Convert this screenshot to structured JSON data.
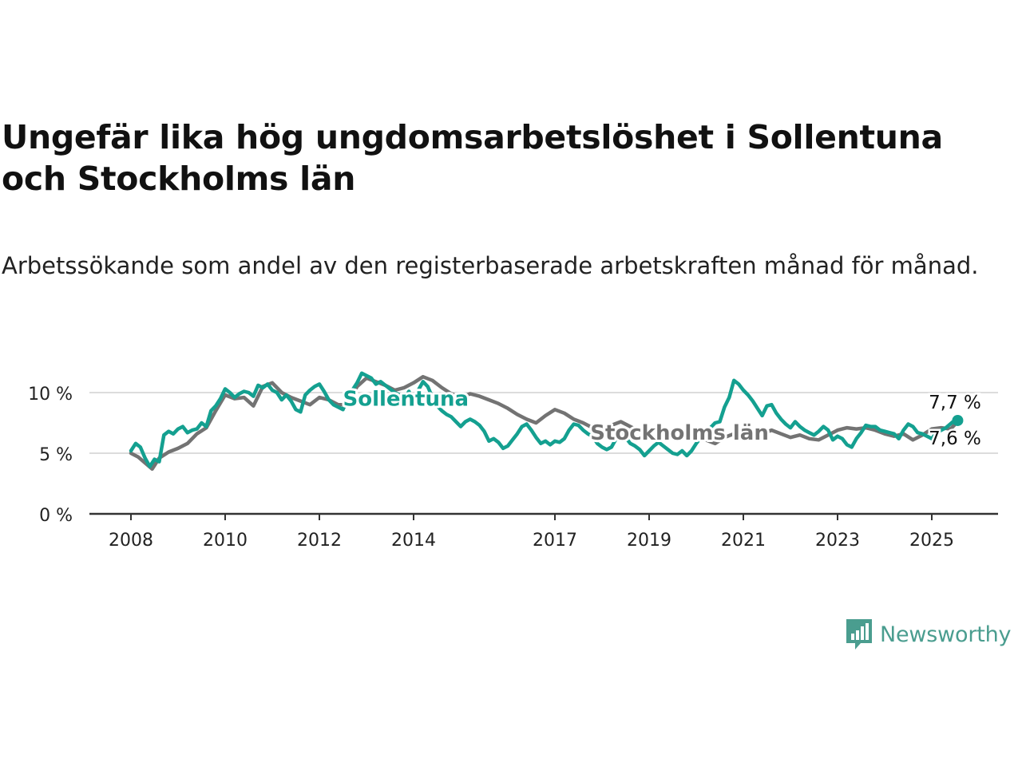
{
  "header": {
    "title": "Ungefär lika hög ungdomsarbetslöshet i Sollentuna och Stockholms län",
    "subtitle": "Arbetssökande som andel av den registerbaserade arbetskraften månad för månad."
  },
  "brand": {
    "logo_text": "Newsworthy",
    "logo_icon": "bar-chart-speech-bubble-icon",
    "color": "#4a9d8f"
  },
  "chart_data": {
    "type": "line",
    "title": "Ungefär lika hög ungdomsarbetslöshet i Sollentuna och Stockholms län",
    "subtitle": "Arbetssökande som andel av den registerbaserade arbetskraften månad för månad.",
    "xlabel": "",
    "ylabel": "",
    "xlim": [
      2008.0,
      2025.6
    ],
    "ylim": [
      0,
      12
    ],
    "x_ticks": [
      2008,
      2010,
      2012,
      2014,
      2017,
      2019,
      2021,
      2023,
      2025
    ],
    "x_tick_labels": [
      "2008",
      "2010",
      "2012",
      "2014",
      "2017",
      "2019",
      "2021",
      "2023",
      "2025"
    ],
    "y_ticks": [
      0,
      5,
      10
    ],
    "y_tick_labels": [
      "0 %",
      "5 %",
      "10 %"
    ],
    "grid": "horizontal",
    "legend": "inline labels",
    "series": [
      {
        "name": "Stockholms län",
        "color": "#737373",
        "label_x": 2017.75,
        "label_y": 6.7,
        "end_label": "7,6 %",
        "points": [
          [
            2008.0,
            5.0
          ],
          [
            2008.15,
            4.7
          ],
          [
            2008.3,
            4.2
          ],
          [
            2008.45,
            3.7
          ],
          [
            2008.6,
            4.6
          ],
          [
            2008.8,
            5.1
          ],
          [
            2009.0,
            5.4
          ],
          [
            2009.2,
            5.8
          ],
          [
            2009.4,
            6.6
          ],
          [
            2009.6,
            7.1
          ],
          [
            2009.8,
            8.5
          ],
          [
            2010.0,
            9.8
          ],
          [
            2010.2,
            9.5
          ],
          [
            2010.4,
            9.6
          ],
          [
            2010.6,
            8.9
          ],
          [
            2010.8,
            10.5
          ],
          [
            2011.0,
            10.8
          ],
          [
            2011.2,
            10.0
          ],
          [
            2011.4,
            9.6
          ],
          [
            2011.6,
            9.3
          ],
          [
            2011.8,
            9.0
          ],
          [
            2012.0,
            9.6
          ],
          [
            2012.2,
            9.4
          ],
          [
            2012.4,
            9.0
          ],
          [
            2012.6,
            9.0
          ],
          [
            2012.8,
            10.5
          ],
          [
            2013.0,
            11.2
          ],
          [
            2013.2,
            10.9
          ],
          [
            2013.4,
            10.6
          ],
          [
            2013.6,
            10.2
          ],
          [
            2013.8,
            10.4
          ],
          [
            2014.0,
            10.8
          ],
          [
            2014.2,
            11.3
          ],
          [
            2014.4,
            11.0
          ],
          [
            2014.6,
            10.4
          ],
          [
            2014.8,
            9.9
          ],
          [
            2015.0,
            9.6
          ],
          [
            2015.2,
            9.9
          ],
          [
            2015.4,
            9.7
          ],
          [
            2015.6,
            9.4
          ],
          [
            2015.8,
            9.1
          ],
          [
            2016.0,
            8.7
          ],
          [
            2016.2,
            8.2
          ],
          [
            2016.4,
            7.8
          ],
          [
            2016.6,
            7.5
          ],
          [
            2016.8,
            8.1
          ],
          [
            2017.0,
            8.6
          ],
          [
            2017.2,
            8.3
          ],
          [
            2017.4,
            7.8
          ],
          [
            2017.6,
            7.5
          ],
          [
            2017.8,
            7.1
          ],
          [
            2018.0,
            6.8
          ],
          [
            2018.2,
            7.3
          ],
          [
            2018.4,
            7.6
          ],
          [
            2018.6,
            7.2
          ],
          [
            2018.8,
            6.8
          ],
          [
            2019.0,
            6.5
          ],
          [
            2019.2,
            6.2
          ],
          [
            2019.4,
            6.6
          ],
          [
            2019.6,
            6.9
          ],
          [
            2019.8,
            6.7
          ],
          [
            2020.0,
            6.5
          ],
          [
            2020.2,
            6.1
          ],
          [
            2020.4,
            5.8
          ],
          [
            2020.6,
            6.3
          ],
          [
            2020.8,
            6.6
          ],
          [
            2021.0,
            6.7
          ],
          [
            2021.2,
            6.4
          ],
          [
            2021.4,
            6.6
          ],
          [
            2021.6,
            6.9
          ],
          [
            2021.8,
            6.6
          ],
          [
            2022.0,
            6.3
          ],
          [
            2022.2,
            6.5
          ],
          [
            2022.4,
            6.2
          ],
          [
            2022.6,
            6.1
          ],
          [
            2022.8,
            6.5
          ],
          [
            2023.0,
            6.9
          ],
          [
            2023.2,
            7.1
          ],
          [
            2023.4,
            7.0
          ],
          [
            2023.6,
            7.1
          ],
          [
            2023.8,
            6.9
          ],
          [
            2024.0,
            6.6
          ],
          [
            2024.2,
            6.4
          ],
          [
            2024.4,
            6.6
          ],
          [
            2024.6,
            6.1
          ],
          [
            2024.8,
            6.5
          ],
          [
            2025.0,
            7.0
          ],
          [
            2025.2,
            7.1
          ],
          [
            2025.4,
            7.0
          ],
          [
            2025.55,
            7.6
          ]
        ]
      },
      {
        "name": "Sollentuna",
        "color": "#14a090",
        "label_x": 2012.5,
        "label_y": 9.5,
        "end_label": "7,7 %",
        "points": [
          [
            2008.0,
            5.2
          ],
          [
            2008.1,
            5.8
          ],
          [
            2008.2,
            5.5
          ],
          [
            2008.3,
            4.6
          ],
          [
            2008.4,
            3.9
          ],
          [
            2008.5,
            4.5
          ],
          [
            2008.6,
            4.3
          ],
          [
            2008.7,
            6.5
          ],
          [
            2008.8,
            6.8
          ],
          [
            2008.9,
            6.6
          ],
          [
            2009.0,
            7.0
          ],
          [
            2009.1,
            7.2
          ],
          [
            2009.2,
            6.7
          ],
          [
            2009.3,
            6.9
          ],
          [
            2009.4,
            7.0
          ],
          [
            2009.5,
            7.5
          ],
          [
            2009.6,
            7.2
          ],
          [
            2009.7,
            8.5
          ],
          [
            2009.8,
            8.9
          ],
          [
            2009.9,
            9.5
          ],
          [
            2010.0,
            10.3
          ],
          [
            2010.1,
            10.0
          ],
          [
            2010.2,
            9.6
          ],
          [
            2010.3,
            9.9
          ],
          [
            2010.4,
            10.1
          ],
          [
            2010.5,
            10.0
          ],
          [
            2010.6,
            9.7
          ],
          [
            2010.7,
            10.6
          ],
          [
            2010.8,
            10.4
          ],
          [
            2010.9,
            10.7
          ],
          [
            2011.0,
            10.2
          ],
          [
            2011.1,
            10.0
          ],
          [
            2011.2,
            9.4
          ],
          [
            2011.3,
            9.8
          ],
          [
            2011.4,
            9.3
          ],
          [
            2011.5,
            8.6
          ],
          [
            2011.6,
            8.4
          ],
          [
            2011.7,
            9.8
          ],
          [
            2011.8,
            10.2
          ],
          [
            2011.9,
            10.5
          ],
          [
            2012.0,
            10.7
          ],
          [
            2012.1,
            10.1
          ],
          [
            2012.2,
            9.4
          ],
          [
            2012.3,
            9.0
          ],
          [
            2012.4,
            8.8
          ],
          [
            2012.5,
            8.6
          ],
          [
            2012.6,
            9.5
          ],
          [
            2012.7,
            10.2
          ],
          [
            2012.8,
            10.8
          ],
          [
            2012.9,
            11.6
          ],
          [
            2013.0,
            11.4
          ],
          [
            2013.1,
            11.2
          ],
          [
            2013.2,
            10.7
          ],
          [
            2013.3,
            10.9
          ],
          [
            2013.4,
            10.6
          ],
          [
            2013.5,
            10.3
          ],
          [
            2013.6,
            10.0
          ],
          [
            2013.7,
            9.8
          ],
          [
            2013.8,
            9.4
          ],
          [
            2013.9,
            10.1
          ],
          [
            2014.0,
            9.3
          ],
          [
            2014.1,
            10.2
          ],
          [
            2014.2,
            10.9
          ],
          [
            2014.3,
            10.5
          ],
          [
            2014.4,
            9.6
          ],
          [
            2014.5,
            8.9
          ],
          [
            2014.6,
            8.5
          ],
          [
            2014.7,
            8.2
          ],
          [
            2014.8,
            8.0
          ],
          [
            2014.9,
            7.6
          ],
          [
            2015.0,
            7.2
          ],
          [
            2015.1,
            7.6
          ],
          [
            2015.2,
            7.8
          ],
          [
            2015.3,
            7.6
          ],
          [
            2015.4,
            7.3
          ],
          [
            2015.5,
            6.8
          ],
          [
            2015.6,
            6.0
          ],
          [
            2015.7,
            6.2
          ],
          [
            2015.8,
            5.9
          ],
          [
            2015.9,
            5.4
          ],
          [
            2016.0,
            5.6
          ],
          [
            2016.1,
            6.1
          ],
          [
            2016.2,
            6.6
          ],
          [
            2016.3,
            7.2
          ],
          [
            2016.4,
            7.4
          ],
          [
            2016.5,
            6.9
          ],
          [
            2016.6,
            6.3
          ],
          [
            2016.7,
            5.8
          ],
          [
            2016.8,
            6.0
          ],
          [
            2016.9,
            5.7
          ],
          [
            2017.0,
            6.0
          ],
          [
            2017.1,
            5.9
          ],
          [
            2017.2,
            6.2
          ],
          [
            2017.3,
            6.9
          ],
          [
            2017.4,
            7.4
          ],
          [
            2017.5,
            7.3
          ],
          [
            2017.6,
            6.9
          ],
          [
            2017.7,
            6.6
          ],
          [
            2017.8,
            6.4
          ],
          [
            2017.9,
            5.8
          ],
          [
            2018.0,
            5.5
          ],
          [
            2018.1,
            5.3
          ],
          [
            2018.2,
            5.5
          ],
          [
            2018.3,
            6.2
          ],
          [
            2018.4,
            6.8
          ],
          [
            2018.5,
            6.3
          ],
          [
            2018.6,
            5.8
          ],
          [
            2018.7,
            5.6
          ],
          [
            2018.8,
            5.3
          ],
          [
            2018.9,
            4.8
          ],
          [
            2019.0,
            5.2
          ],
          [
            2019.1,
            5.6
          ],
          [
            2019.2,
            5.9
          ],
          [
            2019.3,
            5.6
          ],
          [
            2019.4,
            5.3
          ],
          [
            2019.5,
            5.0
          ],
          [
            2019.6,
            4.9
          ],
          [
            2019.7,
            5.2
          ],
          [
            2019.8,
            4.8
          ],
          [
            2019.9,
            5.2
          ],
          [
            2020.0,
            5.8
          ],
          [
            2020.1,
            6.3
          ],
          [
            2020.2,
            6.9
          ],
          [
            2020.3,
            7.1
          ],
          [
            2020.4,
            7.5
          ],
          [
            2020.5,
            7.6
          ],
          [
            2020.6,
            8.8
          ],
          [
            2020.7,
            9.6
          ],
          [
            2020.8,
            11.0
          ],
          [
            2020.9,
            10.7
          ],
          [
            2021.0,
            10.2
          ],
          [
            2021.1,
            9.8
          ],
          [
            2021.2,
            9.3
          ],
          [
            2021.3,
            8.7
          ],
          [
            2021.4,
            8.1
          ],
          [
            2021.5,
            8.9
          ],
          [
            2021.6,
            9.0
          ],
          [
            2021.7,
            8.3
          ],
          [
            2021.8,
            7.8
          ],
          [
            2021.9,
            7.4
          ],
          [
            2022.0,
            7.1
          ],
          [
            2022.1,
            7.6
          ],
          [
            2022.2,
            7.2
          ],
          [
            2022.3,
            6.9
          ],
          [
            2022.4,
            6.7
          ],
          [
            2022.5,
            6.5
          ],
          [
            2022.6,
            6.8
          ],
          [
            2022.7,
            7.2
          ],
          [
            2022.8,
            6.9
          ],
          [
            2022.9,
            6.1
          ],
          [
            2023.0,
            6.4
          ],
          [
            2023.1,
            6.2
          ],
          [
            2023.2,
            5.7
          ],
          [
            2023.3,
            5.5
          ],
          [
            2023.4,
            6.2
          ],
          [
            2023.5,
            6.7
          ],
          [
            2023.6,
            7.3
          ],
          [
            2023.7,
            7.2
          ],
          [
            2023.8,
            7.2
          ],
          [
            2023.9,
            6.9
          ],
          [
            2024.0,
            6.8
          ],
          [
            2024.1,
            6.7
          ],
          [
            2024.2,
            6.6
          ],
          [
            2024.3,
            6.2
          ],
          [
            2024.4,
            6.9
          ],
          [
            2024.5,
            7.4
          ],
          [
            2024.6,
            7.2
          ],
          [
            2024.7,
            6.7
          ],
          [
            2024.8,
            6.6
          ],
          [
            2024.9,
            6.4
          ],
          [
            2025.0,
            6.2
          ],
          [
            2025.1,
            6.7
          ],
          [
            2025.2,
            6.9
          ],
          [
            2025.3,
            7.1
          ],
          [
            2025.45,
            7.6
          ],
          [
            2025.55,
            7.7
          ]
        ]
      }
    ]
  }
}
